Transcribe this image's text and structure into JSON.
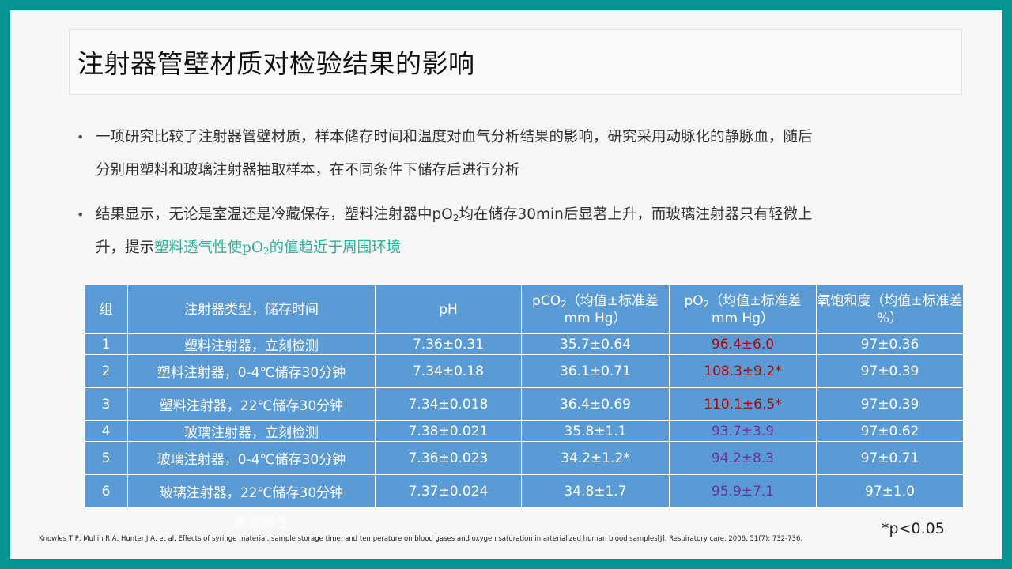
{
  "title": "注射器管壁材质对检验结果的影响",
  "bullets": [
    {
      "line1": "一项研究比较了注射器管壁材质，样本储存时间和温度对血气分析结果的影响，研究采用动脉化的静脉血，随后",
      "line2": "分别用塑料和玻璃注射器抽取样本，在不同条件下储存后进行分析"
    },
    {
      "line1_pre": "结果显示，无论是室温还是冷藏保存，塑料注射器中pO",
      "line1_sub": "2",
      "line1_post": "均在储存30min后显著上升，而玻璃注射器只有轻微上",
      "line2_pre": "升，提示",
      "highlight_pre": "塑料透气性使pO",
      "highlight_sub": "2",
      "highlight_post": "的值趋近于周围环境"
    }
  ],
  "table": {
    "headers": {
      "group": "组",
      "type": "注射器类型，储存时间",
      "ph": "pH",
      "pco2_pre": "pCO",
      "pco2_sub": "2",
      "pco2_post": "（均值±标准差 mm Hg）",
      "po2_pre": "pO",
      "po2_sub": "2",
      "po2_post": "（均值±标准差 mm Hg）",
      "sat": "氧饱和度（均值±标准差 %）"
    },
    "rows": [
      {
        "group": "1",
        "type": "塑料注射器，立刻检测",
        "ph": "7.36±0.31",
        "pco2": "35.7±0.64",
        "po2": "96.4±6.0",
        "sat": "97±0.36"
      },
      {
        "group": "2",
        "type": "塑料注射器，0-4℃储存30分钟",
        "ph": "7.34±0.18",
        "pco2": "36.1±0.71",
        "po2": "108.3±9.2*",
        "sat": "97±0.39"
      },
      {
        "group": "3",
        "type": "塑料注射器，22℃储存30分钟",
        "ph": "7.34±0.018",
        "pco2": "36.4±0.69",
        "po2": "110.1±6.5*",
        "sat": "97±0.39"
      },
      {
        "group": "4",
        "type": "玻璃注射器，立刻检测",
        "ph": "7.38±0.021",
        "pco2": "35.8±1.1",
        "po2": "93.7±3.9",
        "sat": "97±0.62"
      },
      {
        "group": "5",
        "type": "玻璃注射器，0-4℃储存30分钟",
        "ph": "7.36±0.023",
        "pco2": "34.2±1.2*",
        "po2": "94.2±8.3",
        "sat": "97±0.71"
      },
      {
        "group": "6",
        "type": "玻璃注射器，22℃储存30分钟",
        "ph": "7.37±0.024",
        "pco2": "34.8±1.7",
        "po2": "95.9±7.1",
        "sat": "97±1.0"
      }
    ]
  },
  "ghost_text": "果准确性",
  "reference": "Knowles T P, Mullin R A, Hunter J A, et al. Effects of syringe material, sample storage time, and temperature on blood gases and oxygen saturation in arterialized human blood samples[J]. Respiratory care, 2006, 51(7): 732-736.",
  "footnote": "*p<0.05",
  "colors": {
    "frame": "#05948f",
    "table_bg": "#5b9bd5",
    "po2_plastic": "#c00000",
    "po2_glass": "#7030a0",
    "highlight": "#2db39a"
  }
}
